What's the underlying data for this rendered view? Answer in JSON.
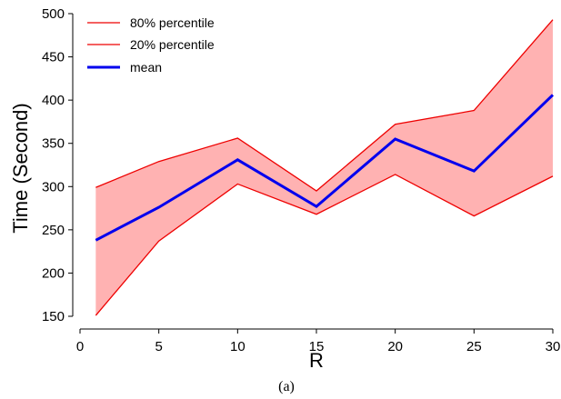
{
  "chart_data": {
    "type": "area",
    "x": [
      1,
      5,
      10,
      15,
      20,
      25,
      30
    ],
    "series": [
      {
        "name": "80% percentile",
        "values": [
          299,
          329,
          356,
          295,
          372,
          388,
          493
        ],
        "color": "#ee0000",
        "line_width": "thin"
      },
      {
        "name": "20% percentile",
        "values": [
          151,
          237,
          303,
          268,
          314,
          266,
          312
        ],
        "color": "#ee0000",
        "line_width": "thin"
      },
      {
        "name": "mean",
        "values": [
          238,
          276,
          331,
          277,
          355,
          318,
          406
        ],
        "color": "#0000ee",
        "line_width": "thick"
      }
    ],
    "band": {
      "between": [
        "80% percentile",
        "20% percentile"
      ],
      "color": "#ffb2b2"
    },
    "xlabel": "R",
    "ylabel": "Time (Second)",
    "xlim": [
      0,
      30
    ],
    "ylim": [
      150,
      500
    ],
    "xticks": [
      0,
      5,
      10,
      15,
      20,
      25,
      30
    ],
    "yticks": [
      150,
      200,
      250,
      300,
      350,
      400,
      450,
      500
    ],
    "grid": false,
    "legend_position": "top-left",
    "caption": "(a)"
  }
}
